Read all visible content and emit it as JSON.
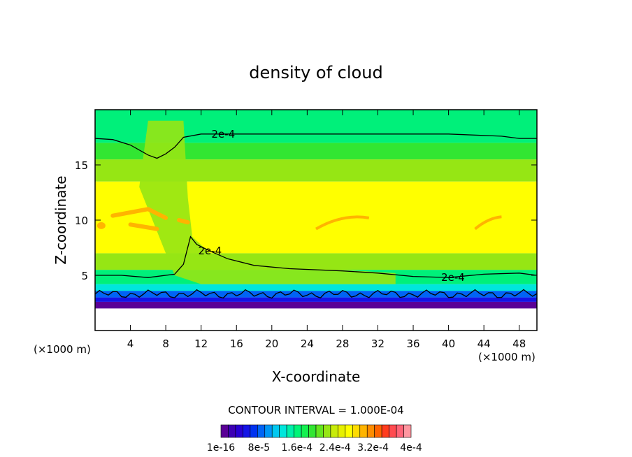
{
  "chart_data": {
    "type": "heatmap",
    "title": "density of cloud",
    "xlabel": "X-coordinate",
    "ylabel": "Z-coordinate",
    "x_unit_label": "(×1000 m)",
    "y_unit_label": "(×1000 m)",
    "xlim": [
      0,
      50
    ],
    "ylim": [
      0,
      20
    ],
    "x_ticks": [
      4,
      8,
      12,
      16,
      20,
      24,
      28,
      32,
      36,
      40,
      44,
      48
    ],
    "y_ticks": [
      5,
      10,
      15
    ],
    "contour_label": "2e-4",
    "contour_interval_text": "CONTOUR INTERVAL = 1.000E-04",
    "colorbar": {
      "labels": [
        "1e-16",
        "8e-5",
        "1.6e-4",
        "2.4e-4",
        "3.2e-4",
        "4e-4"
      ],
      "colors": [
        "#5a0096",
        "#3c00b4",
        "#2800d2",
        "#1414e6",
        "#0032f0",
        "#0064f5",
        "#0096f5",
        "#00c8f0",
        "#00e6dc",
        "#00f0aa",
        "#00f578",
        "#14f050",
        "#32e632",
        "#64e61e",
        "#96e614",
        "#c8ec0a",
        "#e6f000",
        "#ffff00",
        "#ffdc00",
        "#ffb400",
        "#ff8c00",
        "#ff6400",
        "#ff3c1e",
        "#ff4b50",
        "#ff6478",
        "#ff96a0"
      ]
    },
    "field_colors": {
      "top": "#00f07a",
      "upper": "#32e632",
      "mid": "#96e614",
      "core": "#ffff00",
      "peak": "#ffb400",
      "low_cyan": "#00e6dc",
      "low_blue": "#0064f5",
      "deep_blue": "#1414e6",
      "base": "#5a0096"
    },
    "contour_upper": [
      [
        0,
        17.4
      ],
      [
        2,
        17.3
      ],
      [
        4,
        16.8
      ],
      [
        6,
        15.9
      ],
      [
        7,
        15.6
      ],
      [
        8,
        16.0
      ],
      [
        9,
        16.6
      ],
      [
        10,
        17.5
      ],
      [
        12,
        17.8
      ],
      [
        16,
        17.8
      ],
      [
        24,
        17.8
      ],
      [
        30,
        17.8
      ],
      [
        34,
        17.8
      ],
      [
        40,
        17.8
      ],
      [
        46,
        17.6
      ],
      [
        48,
        17.4
      ],
      [
        50,
        17.4
      ]
    ],
    "contour_lower": [
      [
        0,
        5.0
      ],
      [
        3,
        5.0
      ],
      [
        6,
        4.8
      ],
      [
        9,
        5.1
      ],
      [
        10,
        6.0
      ],
      [
        10.8,
        8.5
      ],
      [
        11.5,
        7.8
      ],
      [
        13,
        7.2
      ],
      [
        15,
        6.5
      ],
      [
        18,
        5.9
      ],
      [
        22,
        5.6
      ],
      [
        28,
        5.4
      ],
      [
        32,
        5.2
      ],
      [
        36,
        4.9
      ],
      [
        40,
        4.8
      ],
      [
        44,
        5.1
      ],
      [
        48,
        5.2
      ],
      [
        50,
        5.0
      ]
    ]
  }
}
